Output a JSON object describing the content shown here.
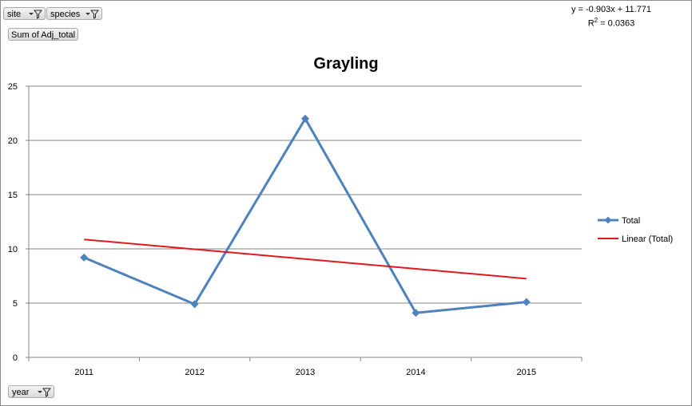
{
  "filters": {
    "site": "site",
    "species": "species",
    "values": "Sum of Adj_total",
    "year": "year"
  },
  "trendline": {
    "equation": "y = -0.903x + 11.771",
    "r2_label": "R",
    "r2_value": " = 0.0363"
  },
  "colors": {
    "series": "#4f81bd",
    "trend": "#e3181d",
    "grid": "#868686"
  },
  "chart_data": {
    "type": "line",
    "title": "Grayling",
    "xlabel": "",
    "ylabel": "",
    "categories": [
      "2011",
      "2012",
      "2013",
      "2014",
      "2015"
    ],
    "ylim": [
      0,
      25
    ],
    "yticks": [
      0,
      5,
      10,
      15,
      20,
      25
    ],
    "grid": true,
    "legend_position": "right",
    "series": [
      {
        "name": "Total",
        "values": [
          9.2,
          4.9,
          22.0,
          4.1,
          5.1
        ],
        "marker": "diamond"
      },
      {
        "name": "Linear (Total)",
        "values": [
          10.868,
          9.965,
          9.062,
          8.159,
          7.256
        ],
        "trendline": true
      }
    ]
  }
}
